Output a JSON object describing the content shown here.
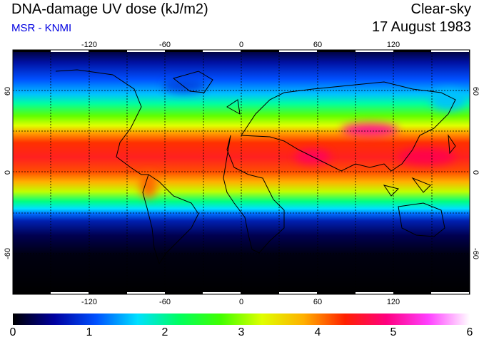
{
  "header": {
    "title": "DNA-damage UV dose (kJ/m2)",
    "source": "MSR - KNMI",
    "mode": "Clear-sky",
    "date": "17 August 1983"
  },
  "map": {
    "lon_labels": [
      "-120",
      "-60",
      "0",
      "60",
      "120"
    ],
    "lat_labels": [
      "60",
      "0",
      "-60"
    ]
  },
  "colorbar": {
    "ticks": [
      "0",
      "1",
      "2",
      "3",
      "4",
      "5",
      "6"
    ],
    "colors": [
      "#000000",
      "#0000a0",
      "#0050ff",
      "#00e0ff",
      "#00ff60",
      "#40ff00",
      "#e0ff00",
      "#ffb000",
      "#ff2000",
      "#ff0080",
      "#ff40ff",
      "#ffffff"
    ]
  }
}
